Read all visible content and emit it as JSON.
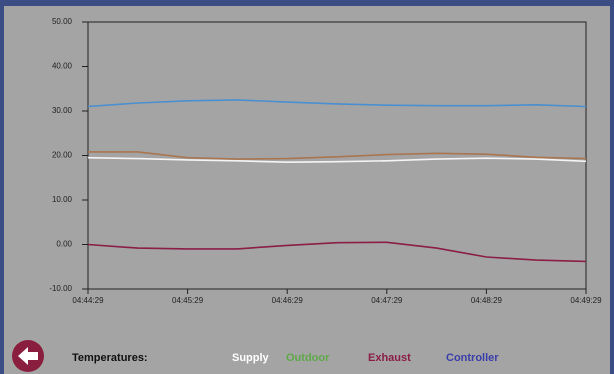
{
  "chart_data": {
    "type": "line",
    "x": [
      "04:44:29",
      null,
      "04:45:29",
      null,
      "04:46:29",
      null,
      "04:47:29",
      null,
      "04:48:29",
      null,
      "04:49:29"
    ],
    "ylim": [
      -10,
      50
    ],
    "yticks": [
      {
        "value": -10,
        "label": "-10.00"
      },
      {
        "value": 0,
        "label": "0.00"
      },
      {
        "value": 10,
        "label": "10.00"
      },
      {
        "value": 20,
        "label": "20.00"
      },
      {
        "value": 30,
        "label": "30.00"
      },
      {
        "value": 40,
        "label": "40.00"
      },
      {
        "value": 50,
        "label": "50.00"
      }
    ],
    "legend_title": "Temperatures:",
    "series": [
      {
        "name": "Supply",
        "color": "#f4f4f4",
        "legend_color": "#ffffff",
        "values": [
          19.5,
          19.3,
          19,
          18.8,
          18.5,
          18.6,
          18.8,
          19.2,
          19.4,
          19.2,
          18.7
        ]
      },
      {
        "name": "Outdoor",
        "color": "#a87650",
        "legend_color": "#5fa84a",
        "values": [
          20.8,
          20.8,
          19.5,
          19.2,
          19.3,
          19.7,
          20.2,
          20.5,
          20.3,
          19.6,
          19.3
        ]
      },
      {
        "name": "Exhaust",
        "color": "#8a1e46",
        "legend_color": "#8a1e46",
        "values": [
          0,
          -0.8,
          -1,
          -1,
          -0.2,
          0.4,
          0.5,
          -0.8,
          -2.8,
          -3.5,
          -3.8
        ]
      },
      {
        "name": "Controller",
        "color": "#4a8fd0",
        "legend_color": "#3a3ea8",
        "values": [
          31,
          31.8,
          32.3,
          32.5,
          32,
          31.6,
          31.3,
          31.2,
          31.2,
          31.4,
          31
        ]
      }
    ]
  }
}
